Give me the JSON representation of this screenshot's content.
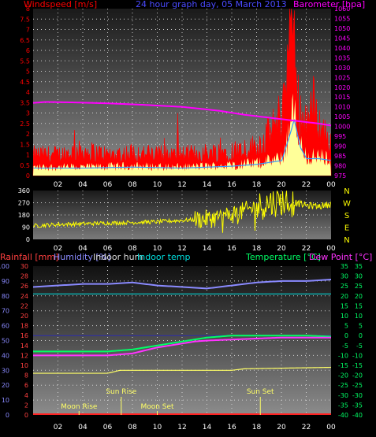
{
  "colors": {
    "wind": "#ff0000",
    "wind_fill": "#ffff99",
    "wind_avg": "#3399ff",
    "barometer": "#ff00ff",
    "title": "#4a4aff",
    "direction": "#ffff00",
    "rain_axis": "#ff4040",
    "humidity": "#8a8aff",
    "indoor_hum": "#dcdcdc",
    "indoor_temp": "#00e0e0",
    "temperature": "#00ff66",
    "dew_point": "#ff33ff",
    "rainfall": "#ff2020",
    "sun": "#ffff66",
    "moon": "#ffff66"
  },
  "chart_data": [
    {
      "type": "line",
      "name": "wind-barometer-panel",
      "title": "24 hour graph day, 05 March 2013",
      "left_axis_label": "Windspeed [m/s]",
      "right_axis_label": "Barometer [hpa]",
      "x_ticks": [
        "02",
        "04",
        "06",
        "08",
        "10",
        "12",
        "14",
        "16",
        "18",
        "20",
        "22",
        "00"
      ],
      "y_left_ticks": [
        "0",
        "0.5",
        "1",
        "1.5",
        "2",
        "2.5",
        "3",
        "3.5",
        "4",
        "4.5",
        "5",
        "5.5",
        "6",
        "6.5",
        "7",
        "7.5",
        "8"
      ],
      "y_right_ticks": [
        "975",
        "980",
        "985",
        "990",
        "995",
        "1000",
        "1005",
        "1010",
        "1015",
        "1020",
        "1025",
        "1030",
        "1035",
        "1040",
        "1045",
        "1050",
        "1055",
        "1060"
      ],
      "ylim_left": [
        0,
        8
      ],
      "ylim_right": [
        975,
        1060
      ],
      "x_range_hours": [
        0,
        24
      ],
      "gust_profile": {
        "x": [
          0,
          2,
          4,
          6,
          8,
          10,
          12,
          14,
          16,
          17,
          18,
          19,
          20,
          20.5,
          20.8,
          21,
          21.2,
          21.5,
          22,
          22.5,
          23,
          23.5,
          24
        ],
        "y": [
          1,
          1,
          1.2,
          1,
          1.1,
          1,
          1,
          1.1,
          1.2,
          1.3,
          1.4,
          2,
          3,
          5.5,
          8,
          6.5,
          4,
          3,
          2.5,
          3.5,
          2.5,
          2,
          1.5
        ]
      },
      "average_profile": {
        "x": [
          0,
          4,
          8,
          12,
          16,
          18,
          20,
          20.8,
          21,
          21.5,
          22,
          23,
          24
        ],
        "y": [
          0.4,
          0.4,
          0.45,
          0.4,
          0.5,
          0.6,
          0.8,
          2.5,
          3,
          1.5,
          0.9,
          0.9,
          0.8
        ]
      },
      "barometer": {
        "x": [
          0,
          1,
          3,
          6,
          9,
          12,
          15,
          17,
          19,
          21,
          23,
          24
        ],
        "y": [
          1012,
          1012.5,
          1012.3,
          1011.8,
          1011,
          1010,
          1008,
          1006,
          1004.5,
          1003,
          1001.5,
          1000.5
        ]
      }
    },
    {
      "type": "scatter",
      "name": "wind-direction-panel",
      "y_ticks": [
        "360",
        "270",
        "180",
        "90",
        "0"
      ],
      "direction_labels": [
        "N",
        "W",
        "S",
        "E",
        "N"
      ],
      "ylim": [
        0,
        360
      ],
      "x_range_hours": [
        0,
        24
      ],
      "x_ticks": [
        "02",
        "04",
        "06",
        "08",
        "10",
        "12",
        "14",
        "16",
        "18",
        "20",
        "22",
        "00"
      ],
      "direction_profile": {
        "x": [
          0,
          2,
          4,
          6,
          8,
          10,
          12,
          14,
          15,
          16,
          17,
          18,
          19,
          20,
          21,
          22,
          23,
          24
        ],
        "y": [
          100,
          110,
          115,
          120,
          125,
          130,
          140,
          150,
          165,
          185,
          210,
          240,
          270,
          280,
          270,
          250,
          245,
          260
        ]
      }
    },
    {
      "type": "line",
      "name": "rain-humidity-temperature-panel",
      "legend_left": [
        "Rainfall [mm]",
        "Humidity [%]",
        "Indoor hum",
        "Indoor temp"
      ],
      "legend_right": [
        "Temperature [°C]",
        "Dew Point [°C]"
      ],
      "y_humidity_ticks": [
        "100",
        "90",
        "80",
        "70",
        "60",
        "50",
        "40",
        "30",
        "20",
        "10",
        "0"
      ],
      "y_rain_ticks": [
        "30",
        "28",
        "26",
        "24",
        "22",
        "20",
        "18",
        "16",
        "14",
        "12",
        "10",
        "8",
        "6",
        "4",
        "2",
        "0"
      ],
      "y_temp_ticks": [
        "35",
        "30",
        "25",
        "20",
        "15",
        "10",
        "5",
        "0",
        "-5",
        "-10",
        "-15",
        "-20",
        "-25",
        "-30",
        "-35",
        "-40"
      ],
      "ylim_humidity": [
        0,
        100
      ],
      "ylim_temp": [
        -40,
        35
      ],
      "x_range_hours": [
        0,
        24
      ],
      "x_ticks": [
        "02",
        "04",
        "06",
        "08",
        "10",
        "12",
        "14",
        "16",
        "18",
        "20",
        "22",
        "00"
      ],
      "humidity": {
        "x": [
          0,
          2,
          4,
          6,
          8,
          10,
          12,
          14,
          16,
          18,
          20,
          22,
          24
        ],
        "y": [
          86,
          87,
          88,
          88,
          89,
          87,
          86,
          85,
          87,
          89,
          90,
          90,
          91
        ]
      },
      "indoor_humidity": {
        "x": [
          0,
          6,
          7,
          8,
          16,
          17,
          24
        ],
        "y": [
          28,
          28,
          30,
          30,
          30,
          31,
          32
        ]
      },
      "indoor_temp": {
        "x": [
          0,
          4,
          8,
          12,
          16,
          20,
          24
        ],
        "y": [
          21,
          21,
          21,
          21,
          21,
          21,
          21
        ]
      },
      "temperature": {
        "x": [
          0,
          4,
          6,
          8,
          9,
          10,
          11,
          12,
          13,
          14,
          16,
          18,
          20,
          22,
          24
        ],
        "y": [
          -8,
          -8,
          -8,
          -7,
          -6,
          -5,
          -4,
          -3,
          -2,
          -1,
          0,
          0,
          0,
          0,
          -0.5
        ]
      },
      "dew_point": {
        "x": [
          0,
          4,
          6,
          8,
          9,
          10,
          11,
          12,
          13,
          14,
          16,
          18,
          20,
          22,
          24
        ],
        "y": [
          -10,
          -10,
          -10,
          -9,
          -7.5,
          -6,
          -5,
          -4,
          -3,
          -2.5,
          -2,
          -1.5,
          -1,
          -1,
          -1
        ]
      },
      "rainfall": {
        "x": [
          0,
          24
        ],
        "y": [
          0,
          0
        ]
      },
      "annotations": [
        {
          "label": "Moon Rise",
          "x": 3.7,
          "row": "low"
        },
        {
          "label": "Sun Rise",
          "x": 7.1,
          "row": "high"
        },
        {
          "label": "Moon Set",
          "x": 10.0,
          "row": "low"
        },
        {
          "label": "Sun Set",
          "x": 18.3,
          "row": "high"
        }
      ]
    }
  ]
}
